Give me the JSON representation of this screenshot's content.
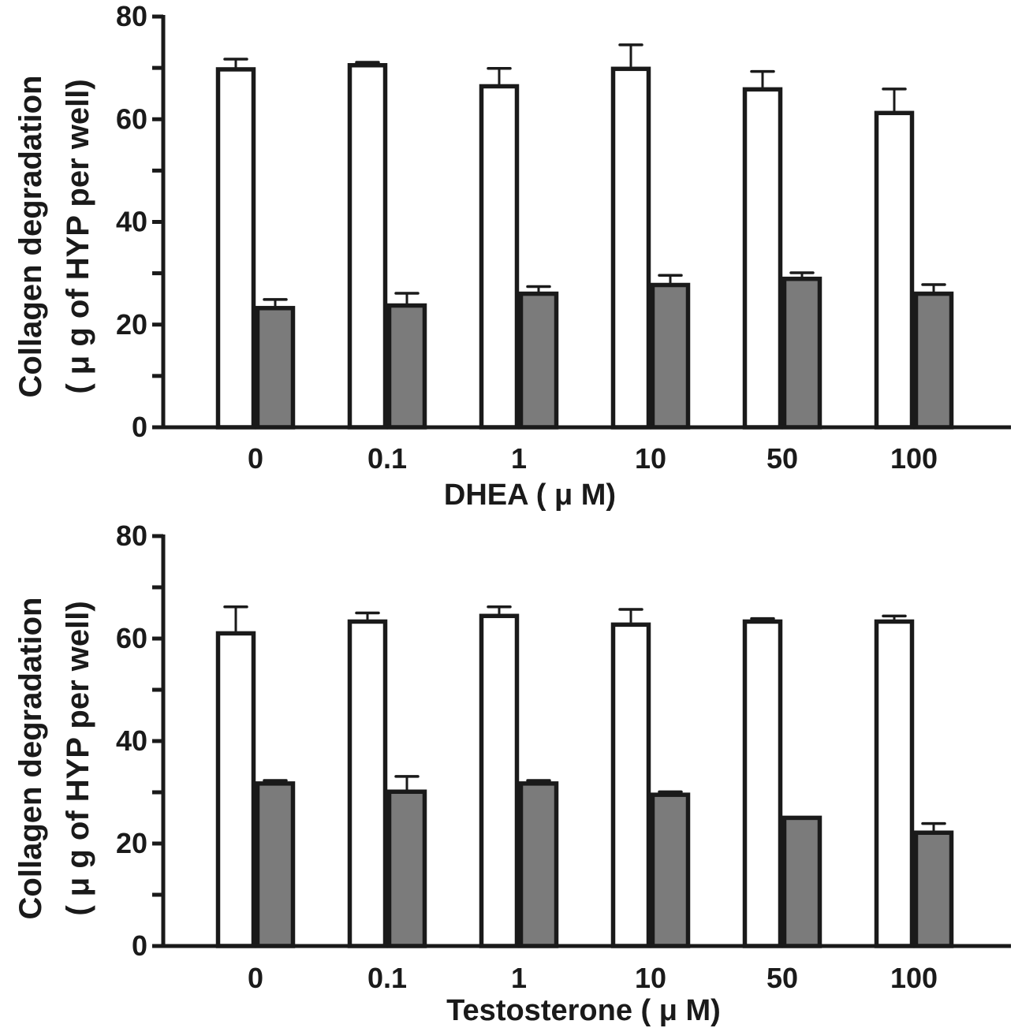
{
  "chart_data": [
    {
      "type": "bar",
      "id": "dhea",
      "categories": [
        "0",
        "0.1",
        "1",
        "10",
        "50",
        "100"
      ],
      "xlabel": "DHEA ( μ M)",
      "ylabel_line1": "Collagen degradation",
      "ylabel_line2": "( μ g of HYP per well)",
      "ylim": [
        0,
        80
      ],
      "yticks_major": [
        0,
        20,
        40,
        60,
        80
      ],
      "yticks_minor": [
        10,
        30,
        50,
        70
      ],
      "grid": false,
      "legend": "none",
      "series": [
        {
          "name": "open",
          "fill": "#ffffff",
          "values": [
            70.1,
            70.9,
            66.8,
            70.2,
            66.2,
            61.6
          ],
          "error": [
            1.6,
            0.2,
            3.1,
            4.3,
            3.1,
            4.3
          ]
        },
        {
          "name": "filled",
          "fill": "#7b7b7b",
          "values": [
            23.6,
            24.1,
            26.4,
            28.1,
            29.3,
            26.4
          ],
          "error": [
            1.3,
            2.0,
            1.0,
            1.5,
            0.8,
            1.4
          ]
        }
      ]
    },
    {
      "type": "bar",
      "id": "testosterone",
      "categories": [
        "0",
        "0.1",
        "1",
        "10",
        "50",
        "100"
      ],
      "xlabel": "Testosterone ( μ M)",
      "ylabel_line1": "Collagen degradation",
      "ylabel_line2": "( μ g of HYP per well)",
      "ylim": [
        0,
        80
      ],
      "yticks_major": [
        0,
        20,
        40,
        60,
        80
      ],
      "yticks_minor": [
        10,
        30,
        50,
        70
      ],
      "grid": false,
      "legend": "none",
      "series": [
        {
          "name": "open",
          "fill": "#ffffff",
          "values": [
            61.4,
            63.7,
            64.8,
            63.1,
            63.7,
            63.7
          ],
          "error": [
            4.8,
            1.3,
            1.4,
            2.6,
            0.2,
            0.7
          ]
        },
        {
          "name": "filled",
          "fill": "#7b7b7b",
          "values": [
            32.1,
            30.5,
            32.1,
            29.9,
            25.4,
            22.5
          ],
          "error": [
            0.2,
            2.6,
            0.2,
            0.2,
            0.0,
            1.4
          ]
        }
      ]
    }
  ],
  "colors": {
    "ink": "#1a1a1a",
    "filled_bar": "#7b7b7b",
    "open_bar": "#ffffff"
  }
}
